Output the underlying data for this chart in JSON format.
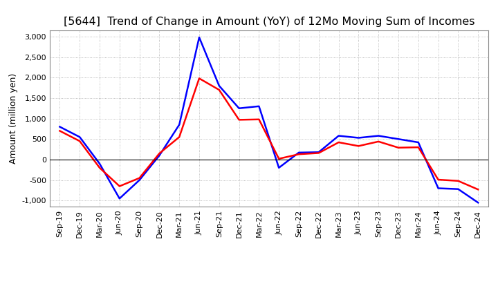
{
  "title": "[5644]  Trend of Change in Amount (YoY) of 12Mo Moving Sum of Incomes",
  "ylabel": "Amount (million yen)",
  "x_labels": [
    "Sep-19",
    "Dec-19",
    "Mar-20",
    "Jun-20",
    "Sep-20",
    "Dec-20",
    "Mar-21",
    "Jun-21",
    "Sep-21",
    "Dec-21",
    "Mar-22",
    "Jun-22",
    "Sep-22",
    "Dec-22",
    "Mar-23",
    "Jun-23",
    "Sep-23",
    "Dec-23",
    "Mar-24",
    "Jun-24",
    "Sep-24",
    "Dec-24"
  ],
  "ordinary_income": [
    800,
    550,
    -100,
    -950,
    -500,
    100,
    850,
    2980,
    1800,
    1250,
    1300,
    -200,
    170,
    180,
    580,
    530,
    580,
    500,
    420,
    -700,
    -720,
    -1050
  ],
  "net_income": [
    700,
    450,
    -200,
    -650,
    -450,
    150,
    550,
    1980,
    1700,
    970,
    980,
    20,
    130,
    160,
    420,
    330,
    440,
    290,
    300,
    -490,
    -520,
    -730
  ],
  "ordinary_income_color": "#0000FF",
  "net_income_color": "#FF0000",
  "ylim": [
    -1150,
    3150
  ],
  "yticks": [
    -1000,
    -500,
    0,
    500,
    1000,
    1500,
    2000,
    2500,
    3000
  ],
  "background_color": "#FFFFFF",
  "grid_color": "#AAAAAA",
  "title_fontsize": 11.5,
  "axis_fontsize": 9,
  "tick_fontsize": 8,
  "legend_fontsize": 9.5,
  "line_width": 1.8
}
